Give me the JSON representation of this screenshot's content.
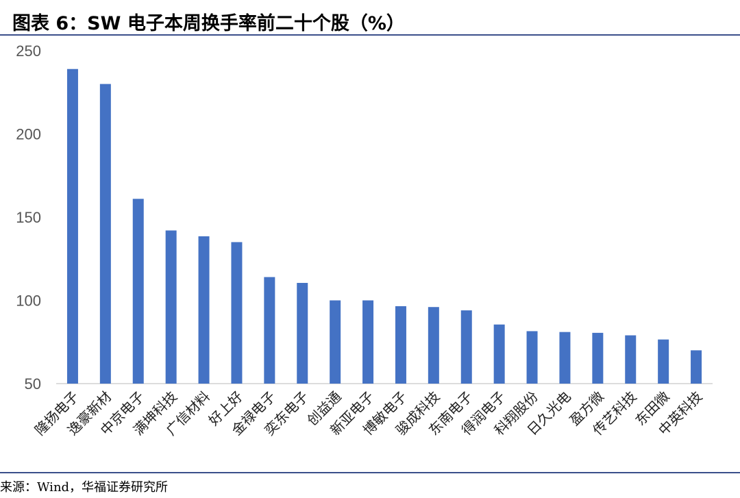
{
  "title": "图表 6：SW 电子本周换手率前二十个股（%）",
  "source": "来源：Wind，华福证券研究所",
  "chart_data": {
    "type": "bar",
    "title": "图表 6：SW 电子本周换手率前二十个股（%）",
    "xlabel": "",
    "ylabel": "",
    "ylim": [
      50,
      250
    ],
    "yticks": [
      50,
      100,
      150,
      200,
      250
    ],
    "grid": false,
    "bar_color": "#4472c4",
    "categories": [
      "隆扬电子",
      "逸豪新材",
      "中京电子",
      "满坤科技",
      "广信材料",
      "好上好",
      "金禄电子",
      "奕东电子",
      "创益通",
      "新亚电子",
      "博敏电子",
      "骏成科技",
      "东南电子",
      "得润电子",
      "科翔股份",
      "日久光电",
      "盈方微",
      "传艺科技",
      "东田微",
      "中英科技"
    ],
    "values": [
      239,
      230,
      161,
      142,
      138.5,
      135,
      114,
      110.5,
      100,
      100,
      96.5,
      96,
      94,
      85.5,
      81.5,
      81,
      80.5,
      79,
      76.5,
      70
    ]
  }
}
